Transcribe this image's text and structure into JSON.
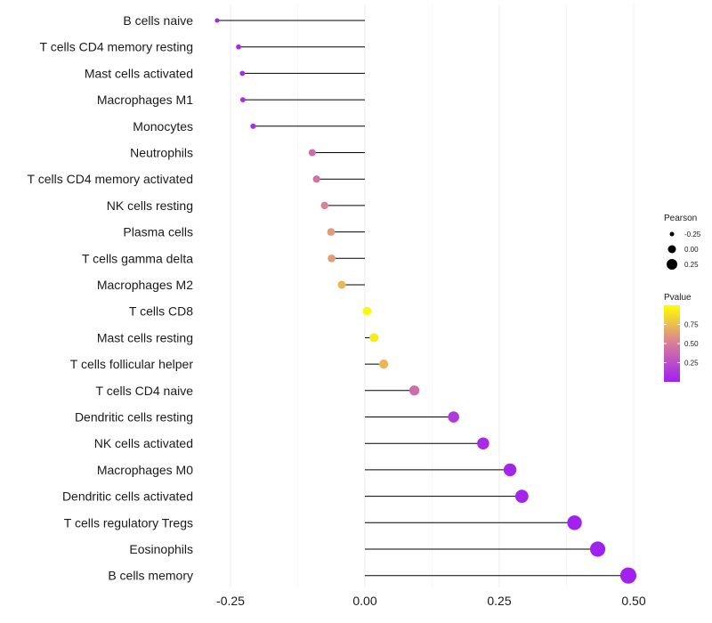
{
  "chart_data": {
    "type": "scatter",
    "subtype": "lollipop",
    "title": "",
    "xlabel": "",
    "ylabel": "",
    "xlim": [
      -0.3,
      0.5
    ],
    "x_ticks": [
      -0.25,
      0.0,
      0.25,
      0.5
    ],
    "x_tick_labels": [
      "-0.25",
      "0.00",
      "0.25",
      "0.50"
    ],
    "grid": true,
    "categories": [
      "B cells naive",
      "T cells CD4 memory resting",
      "Mast cells activated",
      "Macrophages M1",
      "Monocytes",
      "Neutrophils",
      "T cells CD4 memory activated",
      "NK cells resting",
      "Plasma cells",
      "T cells gamma delta",
      "Macrophages M2",
      "T cells CD8",
      "Mast cells resting",
      "T cells follicular helper",
      "T cells CD4 naive",
      "Dendritic cells resting",
      "NK cells activated",
      "Macrophages M0",
      "Dendritic cells activated",
      "T cells regulatory  Tregs ",
      "Eosinophils",
      "B cells memory"
    ],
    "pearson": [
      -0.275,
      -0.235,
      -0.228,
      -0.227,
      -0.208,
      -0.098,
      -0.09,
      -0.075,
      -0.063,
      -0.062,
      -0.043,
      0.004,
      0.017,
      0.035,
      0.092,
      0.165,
      0.22,
      0.27,
      0.292,
      0.39,
      0.433,
      0.49
    ],
    "pvalue": [
      0.02,
      0.05,
      0.06,
      0.06,
      0.08,
      0.42,
      0.45,
      0.52,
      0.62,
      0.63,
      0.72,
      0.97,
      0.92,
      0.72,
      0.42,
      0.14,
      0.06,
      0.03,
      0.02,
      0.01,
      0.01,
      0.005
    ],
    "legend_position": "right",
    "size_legend": {
      "title": "Pearson",
      "values": [
        -0.25,
        0.0,
        0.25
      ],
      "labels": [
        "-0.25",
        "0.00",
        "0.25"
      ]
    },
    "color_legend": {
      "title": "Pvalue",
      "range": [
        0.0,
        1.0
      ],
      "ticks": [
        0.25,
        0.5,
        0.75
      ],
      "tick_labels": [
        "0.25",
        "0.50",
        "0.75"
      ],
      "low_color": "#a020f0",
      "mid_color": "#d77c9d",
      "high_color": "#ffff00"
    }
  }
}
